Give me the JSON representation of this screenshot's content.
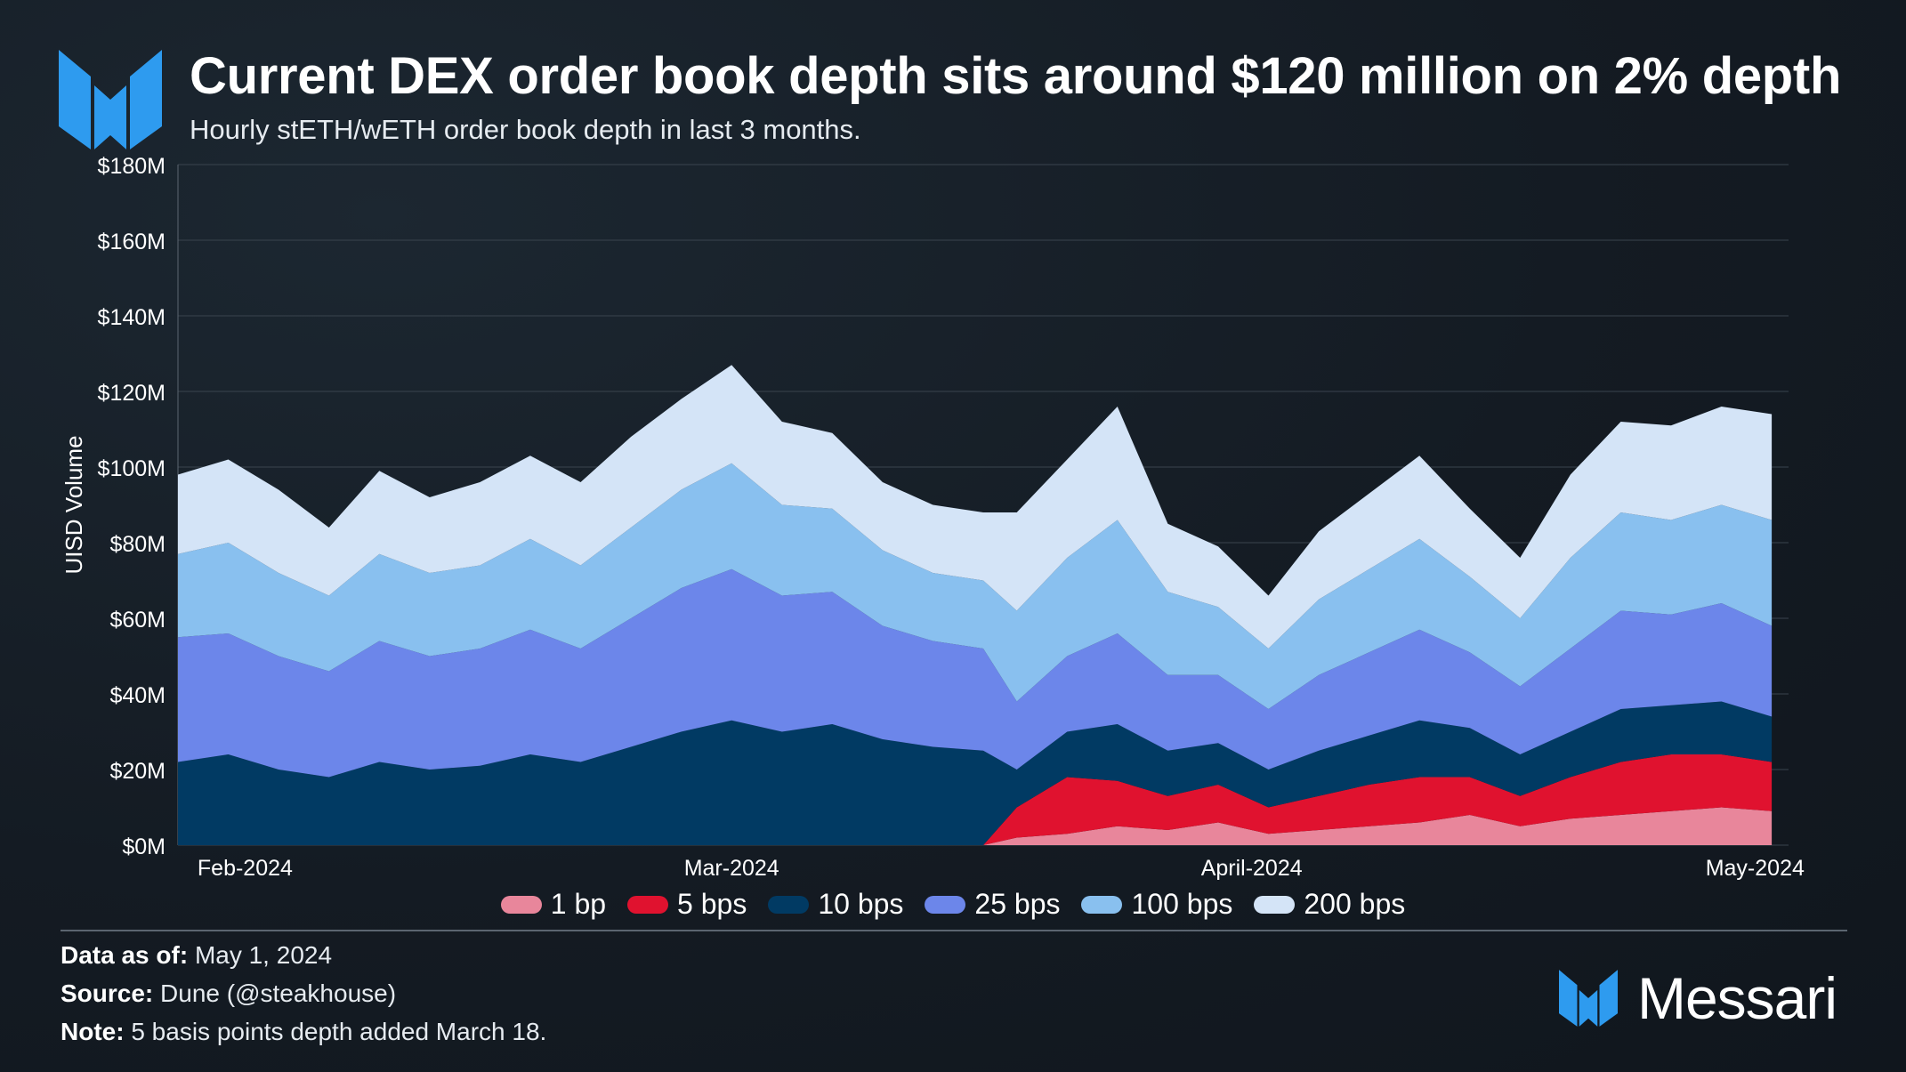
{
  "header": {
    "title": "Current DEX order book depth sits around $120 million on 2% depth",
    "subtitle": "Hourly stETH/wETH order book depth in last 3 months."
  },
  "footer": {
    "data_as_of_label": "Data as of:",
    "data_as_of_value": "May 1, 2024",
    "source_label": "Source:",
    "source_value": "Dune (@steakhouse)",
    "note_label": "Note:",
    "note_value": "5 basis points depth added March 18."
  },
  "brand": {
    "name": "Messari",
    "color": "#2e9bef"
  },
  "chart_data": {
    "type": "area",
    "stacked": true,
    "ylabel": "UISD Volume",
    "xlabel": "",
    "y_ticks": [
      "$0M",
      "$20M",
      "$40M",
      "$60M",
      "$80M",
      "$100M",
      "$120M",
      "$140M",
      "$160M",
      "$180M"
    ],
    "ylim": [
      0,
      180
    ],
    "y_unit": "USD millions",
    "x_ticks": [
      {
        "date": "2024-02-01",
        "label": "Feb-2024"
      },
      {
        "date": "2024-03-01",
        "label": "Mar-2024"
      },
      {
        "date": "2024-04-01",
        "label": "April-2024"
      },
      {
        "date": "2024-05-01",
        "label": "May-2024"
      }
    ],
    "xlim": [
      "2024-01-28",
      "2024-05-03"
    ],
    "grid": "horizontal",
    "legend_position": "bottom",
    "x": [
      "2024-01-28",
      "2024-01-31",
      "2024-02-03",
      "2024-02-06",
      "2024-02-09",
      "2024-02-12",
      "2024-02-15",
      "2024-02-18",
      "2024-02-21",
      "2024-02-24",
      "2024-02-27",
      "2024-03-01",
      "2024-03-04",
      "2024-03-07",
      "2024-03-10",
      "2024-03-13",
      "2024-03-16",
      "2024-03-18",
      "2024-03-21",
      "2024-03-24",
      "2024-03-27",
      "2024-03-30",
      "2024-04-02",
      "2024-04-05",
      "2024-04-08",
      "2024-04-11",
      "2024-04-14",
      "2024-04-17",
      "2024-04-20",
      "2024-04-23",
      "2024-04-26",
      "2024-04-29",
      "2024-05-02"
    ],
    "series": [
      {
        "name": "1 bp",
        "color": "#e8869b",
        "values": [
          0,
          0,
          0,
          0,
          0,
          0,
          0,
          0,
          0,
          0,
          0,
          0,
          0,
          0,
          0,
          0,
          0,
          2,
          3,
          5,
          4,
          6,
          3,
          4,
          5,
          6,
          8,
          5,
          7,
          8,
          9,
          10,
          9
        ]
      },
      {
        "name": "5 bps",
        "color": "#e0122f",
        "values": [
          0,
          0,
          0,
          0,
          0,
          0,
          0,
          0,
          0,
          0,
          0,
          0,
          0,
          0,
          0,
          0,
          0,
          8,
          15,
          12,
          9,
          10,
          7,
          9,
          11,
          12,
          10,
          8,
          11,
          14,
          15,
          14,
          13
        ]
      },
      {
        "name": "10 bps",
        "color": "#013a63",
        "values": [
          22,
          24,
          20,
          18,
          22,
          20,
          21,
          24,
          22,
          26,
          30,
          33,
          30,
          32,
          28,
          26,
          25,
          10,
          12,
          15,
          12,
          11,
          10,
          12,
          13,
          15,
          13,
          11,
          12,
          14,
          13,
          14,
          12
        ]
      },
      {
        "name": "25 bps",
        "color": "#6c86ea",
        "values": [
          33,
          32,
          30,
          28,
          32,
          30,
          31,
          33,
          30,
          34,
          38,
          40,
          36,
          35,
          30,
          28,
          27,
          18,
          20,
          24,
          20,
          18,
          16,
          20,
          22,
          24,
          20,
          18,
          22,
          26,
          24,
          26,
          24
        ]
      },
      {
        "name": "100 bps",
        "color": "#89c0ef",
        "values": [
          22,
          24,
          22,
          20,
          23,
          22,
          22,
          24,
          22,
          24,
          26,
          28,
          24,
          22,
          20,
          18,
          18,
          24,
          26,
          30,
          22,
          18,
          16,
          20,
          22,
          24,
          20,
          18,
          24,
          26,
          25,
          26,
          28
        ]
      },
      {
        "name": "200 bps",
        "color": "#d4e4f7",
        "values": [
          21,
          22,
          22,
          18,
          22,
          20,
          22,
          22,
          22,
          24,
          24,
          26,
          22,
          20,
          18,
          18,
          18,
          26,
          26,
          30,
          18,
          16,
          14,
          18,
          20,
          22,
          18,
          16,
          22,
          24,
          25,
          26,
          28
        ]
      }
    ]
  }
}
